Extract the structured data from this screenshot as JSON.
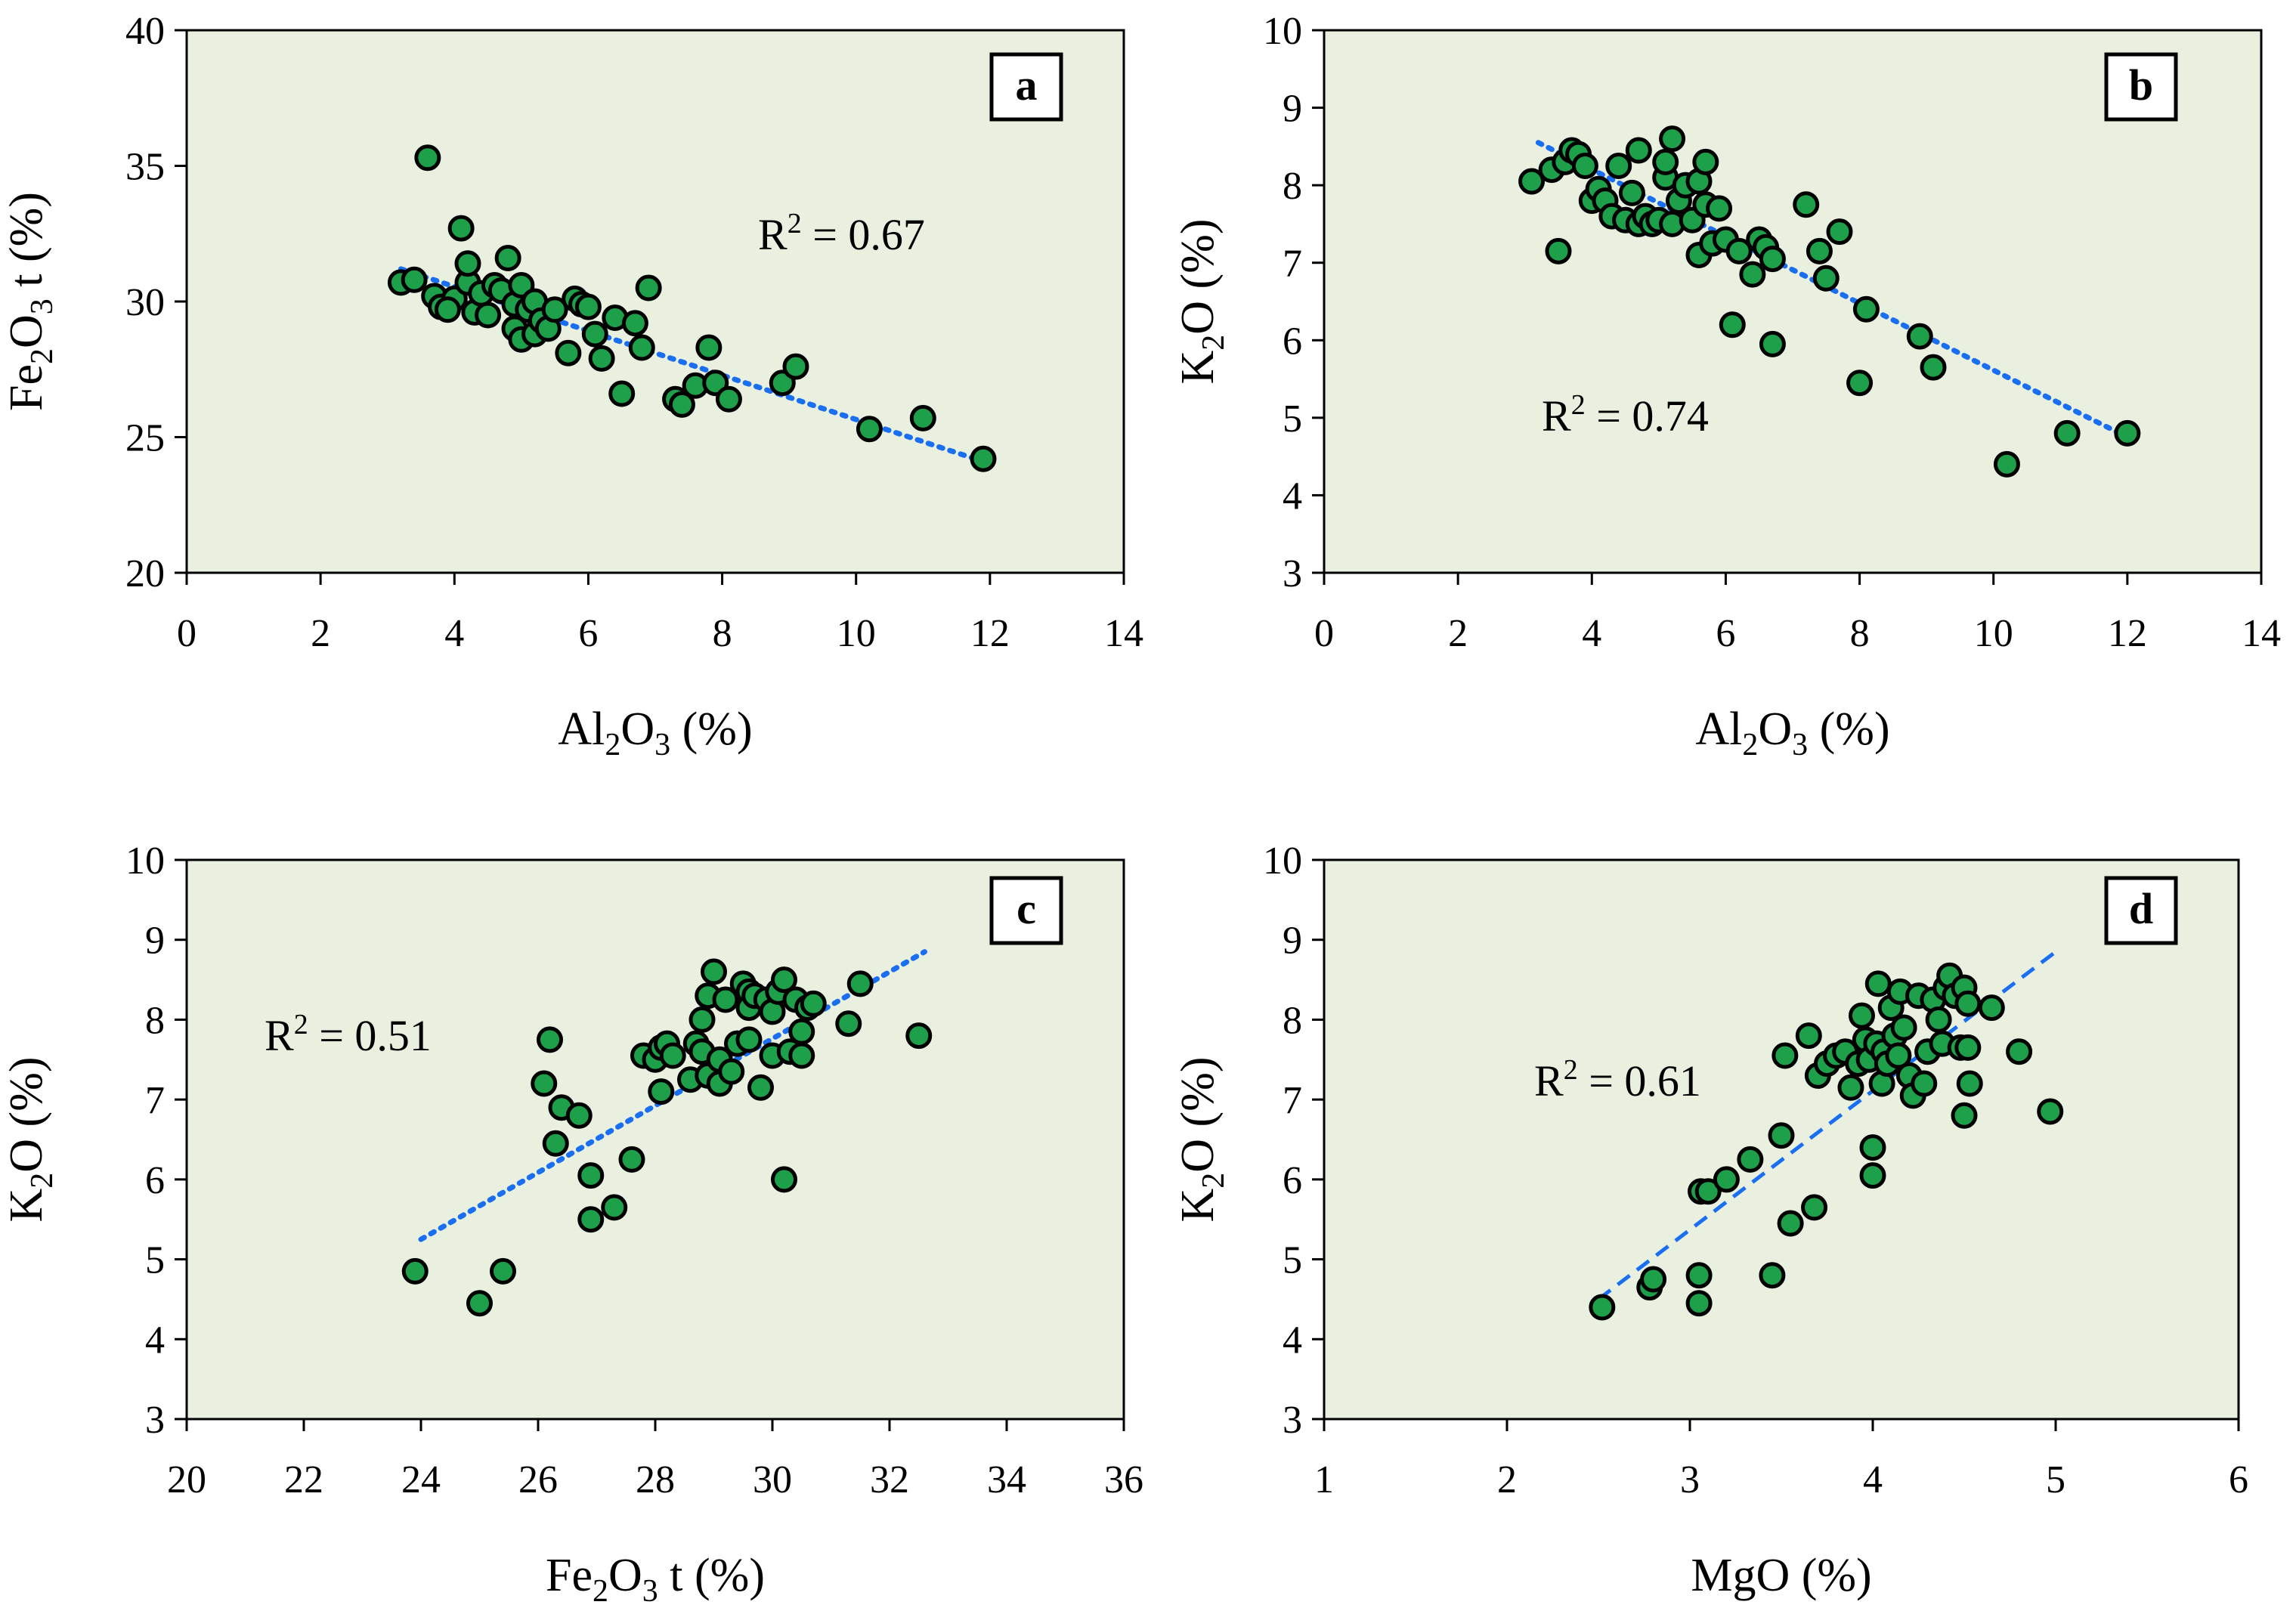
{
  "figure": {
    "panel_bg": "#e9f0e0",
    "point_fill": "#1ea04b",
    "point_stroke": "#000000",
    "trend_color": "#1a6ff0"
  },
  "chart_data": [
    {
      "type": "scatter",
      "panel_letter": "a",
      "xlabel": {
        "main": "Al",
        "sub": [
          "2",
          "3"
        ],
        "parts": [
          "Al",
          "2",
          "O",
          "3",
          " (%)"
        ]
      },
      "ylabel": {
        "parts": [
          "Fe",
          "2",
          "O",
          "3",
          " t (%)"
        ]
      },
      "xlim": [
        0,
        14
      ],
      "ylim": [
        20,
        40
      ],
      "xticks": [
        0,
        2,
        4,
        6,
        8,
        10,
        12,
        14
      ],
      "yticks": [
        20,
        25,
        30,
        35,
        40
      ],
      "r2_label": "R",
      "r2_sup": "2",
      "r2_value": " = 0.67",
      "trend": {
        "style": "dotted",
        "x": [
          3.2,
          11.9
        ],
        "y": [
          31.2,
          24.1
        ]
      },
      "points": [
        [
          3.2,
          30.7
        ],
        [
          3.4,
          30.8
        ],
        [
          3.6,
          35.3
        ],
        [
          3.7,
          30.2
        ],
        [
          3.8,
          29.8
        ],
        [
          4.0,
          30.1
        ],
        [
          3.9,
          29.7
        ],
        [
          4.1,
          32.7
        ],
        [
          4.2,
          30.7
        ],
        [
          4.2,
          31.4
        ],
        [
          4.3,
          29.6
        ],
        [
          4.4,
          30.3
        ],
        [
          4.5,
          29.5
        ],
        [
          4.6,
          30.6
        ],
        [
          4.7,
          30.4
        ],
        [
          4.8,
          31.6
        ],
        [
          4.9,
          29.0
        ],
        [
          4.9,
          29.9
        ],
        [
          5.0,
          28.6
        ],
        [
          5.0,
          30.6
        ],
        [
          5.1,
          29.7
        ],
        [
          5.2,
          30.0
        ],
        [
          5.2,
          28.8
        ],
        [
          5.3,
          29.3
        ],
        [
          5.4,
          29.0
        ],
        [
          5.5,
          29.7
        ],
        [
          5.7,
          28.1
        ],
        [
          5.8,
          30.1
        ],
        [
          5.9,
          29.9
        ],
        [
          6.0,
          29.8
        ],
        [
          6.1,
          28.8
        ],
        [
          6.2,
          27.9
        ],
        [
          6.4,
          29.4
        ],
        [
          6.5,
          26.6
        ],
        [
          6.7,
          29.2
        ],
        [
          6.8,
          28.3
        ],
        [
          6.9,
          30.5
        ],
        [
          7.3,
          26.4
        ],
        [
          7.4,
          26.2
        ],
        [
          7.6,
          26.9
        ],
        [
          7.8,
          28.3
        ],
        [
          7.9,
          27.0
        ],
        [
          8.1,
          26.4
        ],
        [
          8.9,
          27.0
        ],
        [
          9.1,
          27.6
        ],
        [
          10.2,
          25.3
        ],
        [
          11.0,
          25.7
        ],
        [
          11.9,
          24.2
        ]
      ]
    },
    {
      "type": "scatter",
      "panel_letter": "b",
      "xlabel": {
        "parts": [
          "Al",
          "2",
          "O",
          "3",
          " (%)"
        ]
      },
      "ylabel": {
        "parts": [
          "K",
          "2",
          "O (%)"
        ]
      },
      "xlim": [
        0,
        14
      ],
      "ylim": [
        3,
        10
      ],
      "xticks": [
        0,
        2,
        4,
        6,
        8,
        10,
        12,
        14
      ],
      "yticks": [
        3,
        4,
        5,
        6,
        7,
        8,
        9,
        10
      ],
      "r2_label": "R",
      "r2_sup": "2",
      "r2_value": " = 0.74",
      "trend": {
        "style": "dotted",
        "x": [
          3.2,
          12.0
        ],
        "y": [
          8.55,
          4.75
        ]
      },
      "points": [
        [
          3.1,
          8.05
        ],
        [
          3.4,
          8.2
        ],
        [
          3.5,
          7.15
        ],
        [
          3.6,
          8.3
        ],
        [
          3.7,
          8.45
        ],
        [
          3.8,
          8.4
        ],
        [
          3.9,
          8.25
        ],
        [
          4.0,
          7.8
        ],
        [
          4.1,
          7.95
        ],
        [
          4.2,
          7.8
        ],
        [
          4.3,
          7.6
        ],
        [
          4.4,
          8.25
        ],
        [
          4.5,
          7.55
        ],
        [
          4.6,
          7.9
        ],
        [
          4.7,
          8.45
        ],
        [
          4.7,
          7.5
        ],
        [
          4.8,
          7.6
        ],
        [
          4.9,
          7.5
        ],
        [
          5.0,
          7.55
        ],
        [
          5.1,
          8.1
        ],
        [
          5.1,
          8.3
        ],
        [
          5.2,
          8.6
        ],
        [
          5.2,
          7.5
        ],
        [
          5.3,
          7.8
        ],
        [
          5.4,
          8.0
        ],
        [
          5.5,
          7.55
        ],
        [
          5.6,
          7.1
        ],
        [
          5.6,
          8.05
        ],
        [
          5.7,
          8.3
        ],
        [
          5.7,
          7.75
        ],
        [
          5.8,
          7.25
        ],
        [
          5.9,
          7.7
        ],
        [
          6.0,
          7.3
        ],
        [
          6.1,
          6.2
        ],
        [
          6.2,
          7.15
        ],
        [
          6.4,
          6.85
        ],
        [
          6.5,
          7.3
        ],
        [
          6.6,
          7.2
        ],
        [
          6.7,
          5.95
        ],
        [
          6.7,
          7.05
        ],
        [
          7.2,
          7.75
        ],
        [
          7.4,
          7.15
        ],
        [
          7.5,
          6.8
        ],
        [
          7.7,
          7.4
        ],
        [
          8.0,
          5.45
        ],
        [
          8.1,
          6.4
        ],
        [
          8.9,
          6.05
        ],
        [
          9.1,
          5.65
        ],
        [
          10.2,
          4.4
        ],
        [
          11.1,
          4.8
        ],
        [
          12.0,
          4.8
        ]
      ]
    },
    {
      "type": "scatter",
      "panel_letter": "c",
      "xlabel": {
        "parts": [
          "Fe",
          "2",
          "O",
          "3",
          " t (%)"
        ]
      },
      "ylabel": {
        "parts": [
          "K",
          "2",
          "O (%)"
        ]
      },
      "xlim": [
        20,
        36
      ],
      "ylim": [
        3,
        10
      ],
      "xticks": [
        20,
        22,
        24,
        26,
        28,
        30,
        32,
        34,
        36
      ],
      "yticks": [
        3,
        4,
        5,
        6,
        7,
        8,
        9,
        10
      ],
      "r2_label": "R",
      "r2_sup": "2",
      "r2_value": " = 0.51",
      "trend": {
        "style": "dotted",
        "x": [
          24.0,
          32.6
        ],
        "y": [
          5.25,
          8.85
        ]
      },
      "points": [
        [
          23.9,
          4.85
        ],
        [
          25.0,
          4.45
        ],
        [
          25.4,
          4.85
        ],
        [
          26.1,
          7.2
        ],
        [
          26.2,
          7.75
        ],
        [
          26.3,
          6.45
        ],
        [
          26.4,
          6.9
        ],
        [
          26.7,
          6.8
        ],
        [
          26.9,
          6.05
        ],
        [
          26.9,
          5.5
        ],
        [
          27.3,
          5.65
        ],
        [
          27.6,
          6.25
        ],
        [
          27.8,
          7.55
        ],
        [
          28.0,
          7.5
        ],
        [
          28.1,
          7.1
        ],
        [
          28.1,
          7.65
        ],
        [
          28.2,
          7.7
        ],
        [
          28.3,
          7.55
        ],
        [
          28.6,
          7.25
        ],
        [
          28.7,
          7.7
        ],
        [
          28.8,
          8.0
        ],
        [
          28.8,
          7.6
        ],
        [
          28.9,
          8.3
        ],
        [
          28.9,
          7.3
        ],
        [
          29.0,
          8.6
        ],
        [
          29.1,
          7.5
        ],
        [
          29.1,
          7.2
        ],
        [
          29.2,
          8.25
        ],
        [
          29.3,
          7.35
        ],
        [
          29.4,
          7.7
        ],
        [
          29.5,
          8.45
        ],
        [
          29.6,
          8.35
        ],
        [
          29.6,
          8.15
        ],
        [
          29.6,
          7.75
        ],
        [
          29.7,
          8.3
        ],
        [
          29.8,
          7.15
        ],
        [
          29.9,
          8.25
        ],
        [
          30.0,
          7.55
        ],
        [
          30.0,
          8.1
        ],
        [
          30.1,
          8.35
        ],
        [
          30.2,
          8.5
        ],
        [
          30.2,
          6.0
        ],
        [
          30.3,
          7.6
        ],
        [
          30.4,
          8.25
        ],
        [
          30.5,
          7.85
        ],
        [
          30.5,
          7.55
        ],
        [
          30.6,
          8.15
        ],
        [
          30.7,
          8.2
        ],
        [
          31.3,
          7.95
        ],
        [
          31.5,
          8.45
        ],
        [
          32.5,
          7.8
        ]
      ]
    },
    {
      "type": "scatter",
      "panel_letter": "d",
      "xlabel": {
        "parts": [
          "MgO (%)"
        ]
      },
      "ylabel": {
        "parts": [
          "K",
          "2",
          "O (%)"
        ]
      },
      "xlim": [
        1,
        6
      ],
      "ylim": [
        3,
        10
      ],
      "xticks": [
        1,
        2,
        3,
        4,
        5,
        6
      ],
      "yticks": [
        3,
        4,
        5,
        6,
        7,
        8,
        9,
        10
      ],
      "r2_label": "R",
      "r2_sup": "2",
      "r2_value": " = 0.61",
      "trend": {
        "style": "dashed",
        "x": [
          2.5,
          5.0
        ],
        "y": [
          4.5,
          8.85
        ]
      },
      "points": [
        [
          2.52,
          4.4
        ],
        [
          2.78,
          4.65
        ],
        [
          2.8,
          4.75
        ],
        [
          3.05,
          4.45
        ],
        [
          3.05,
          4.8
        ],
        [
          3.06,
          5.85
        ],
        [
          3.1,
          5.85
        ],
        [
          3.2,
          6.0
        ],
        [
          3.33,
          6.25
        ],
        [
          3.45,
          4.8
        ],
        [
          3.5,
          6.55
        ],
        [
          3.52,
          7.55
        ],
        [
          3.55,
          5.45
        ],
        [
          3.65,
          7.8
        ],
        [
          3.68,
          5.65
        ],
        [
          3.7,
          7.3
        ],
        [
          3.75,
          7.45
        ],
        [
          3.8,
          7.55
        ],
        [
          3.85,
          7.6
        ],
        [
          3.88,
          7.15
        ],
        [
          3.92,
          7.45
        ],
        [
          3.94,
          8.05
        ],
        [
          3.96,
          7.75
        ],
        [
          3.98,
          7.5
        ],
        [
          4.0,
          6.4
        ],
        [
          4.0,
          6.05
        ],
        [
          4.02,
          7.7
        ],
        [
          4.03,
          8.45
        ],
        [
          4.05,
          7.2
        ],
        [
          4.06,
          7.6
        ],
        [
          4.08,
          7.45
        ],
        [
          4.1,
          8.15
        ],
        [
          4.12,
          7.8
        ],
        [
          4.14,
          7.55
        ],
        [
          4.15,
          8.35
        ],
        [
          4.17,
          7.9
        ],
        [
          4.2,
          7.3
        ],
        [
          4.22,
          7.05
        ],
        [
          4.25,
          8.3
        ],
        [
          4.28,
          7.2
        ],
        [
          4.3,
          7.6
        ],
        [
          4.33,
          8.25
        ],
        [
          4.36,
          8.0
        ],
        [
          4.38,
          7.7
        ],
        [
          4.4,
          8.4
        ],
        [
          4.42,
          8.55
        ],
        [
          4.45,
          8.3
        ],
        [
          4.48,
          7.65
        ],
        [
          4.5,
          8.4
        ],
        [
          4.5,
          6.8
        ],
        [
          4.52,
          8.2
        ],
        [
          4.52,
          7.65
        ],
        [
          4.53,
          7.2
        ],
        [
          4.65,
          8.15
        ],
        [
          4.8,
          7.6
        ],
        [
          4.97,
          6.85
        ]
      ]
    }
  ]
}
